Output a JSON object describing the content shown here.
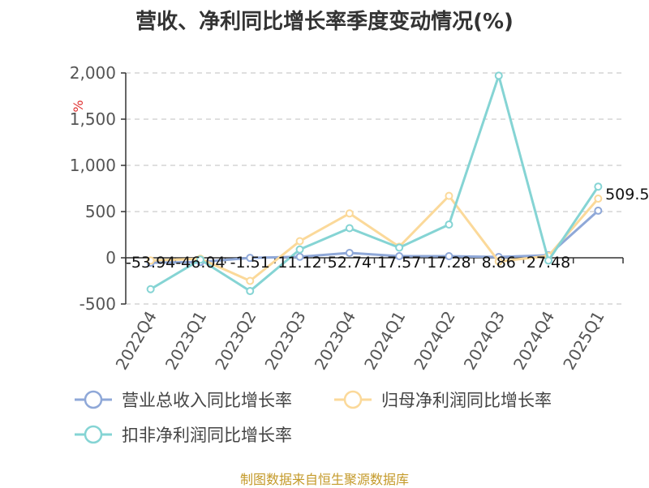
{
  "colors": {
    "revenue": "#8fa8d8",
    "net_profit": "#fbd99a",
    "deducted_profit": "#85d4d4",
    "grid": "#cccccc",
    "axis": "#333333",
    "unit": "#e03030",
    "source": "#c49a2a"
  },
  "chart_data": {
    "type": "line",
    "title": "营收、净利同比增长率季度变动情况(%)",
    "unit_label": "%",
    "categories": [
      "2022Q4",
      "2023Q1",
      "2023Q2",
      "2023Q3",
      "2023Q4",
      "2024Q1",
      "2024Q2",
      "2024Q3",
      "2024Q4",
      "2025Q1"
    ],
    "ylim": [
      -500,
      2000
    ],
    "yticks": [
      -500,
      0,
      500,
      1000,
      1500,
      2000
    ],
    "ytick_labels": [
      "-500",
      "0",
      "500",
      "1,000",
      "1,500",
      "2,000"
    ],
    "grid": true,
    "legend_position": "bottom",
    "series": [
      {
        "key": "revenue",
        "name": "营业总收入同比增长率",
        "values": [
          -53.94,
          -46.04,
          -1.51,
          11.12,
          52.74,
          17.57,
          17.28,
          8.86,
          27.48,
          509.54
        ],
        "labels": [
          "-53.94",
          "-46.04",
          "-1.51",
          "11.12",
          "52.74",
          "17.57",
          "17.28",
          "8.86",
          "27.48",
          "509.54"
        ]
      },
      {
        "key": "net_profit",
        "name": "归母净利润同比增长率",
        "values": [
          -30,
          -10,
          -250,
          180,
          480,
          120,
          670,
          -40,
          20,
          640
        ]
      },
      {
        "key": "deducted_profit",
        "name": "扣非净利润同比增长率",
        "values": [
          -340,
          -20,
          -360,
          90,
          320,
          110,
          360,
          1970,
          -30,
          770
        ]
      }
    ]
  },
  "source_note": "制图数据来自恒生聚源数据库"
}
